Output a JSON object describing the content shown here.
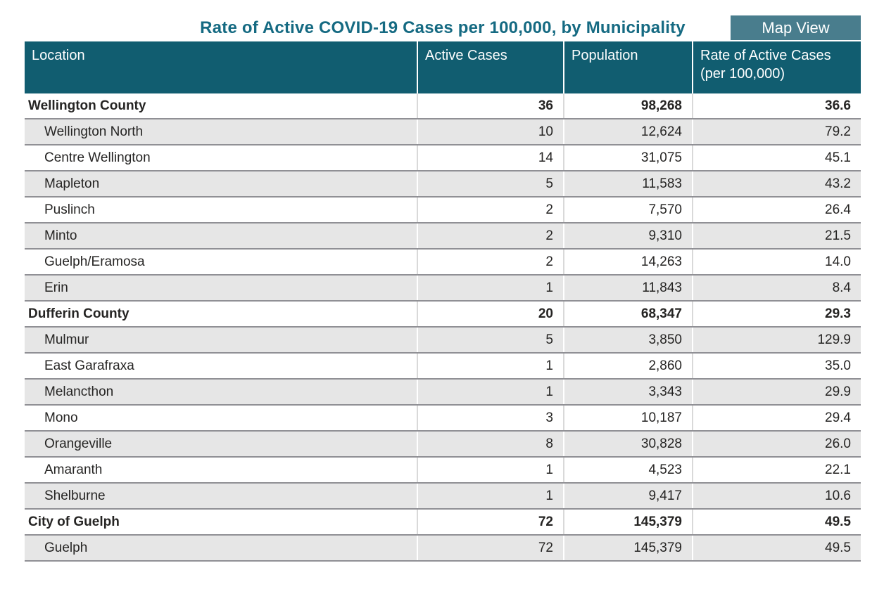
{
  "toolbar": {
    "map_view_label": "Map View"
  },
  "colors": {
    "title_text": "#156A82",
    "header_bg": "#115D70",
    "button_bg": "#497D8D",
    "row_alt_bg": "#E6E6E6",
    "row_separator": "#909095",
    "body_text": "#252423"
  },
  "chart_data": {
    "type": "table",
    "title": "Rate of Active COVID-19 Cases per 100,000, by Municipality",
    "columns": [
      "Location",
      "Active Cases",
      "Population",
      "Rate of Active Cases (per 100,000)"
    ],
    "rows": [
      {
        "location": "Wellington County",
        "active_cases": "36",
        "population": "98,268",
        "rate": "36.6",
        "level": "county"
      },
      {
        "location": "Wellington North",
        "active_cases": "10",
        "population": "12,624",
        "rate": "79.2",
        "level": "municipality"
      },
      {
        "location": "Centre Wellington",
        "active_cases": "14",
        "population": "31,075",
        "rate": "45.1",
        "level": "municipality"
      },
      {
        "location": "Mapleton",
        "active_cases": "5",
        "population": "11,583",
        "rate": "43.2",
        "level": "municipality"
      },
      {
        "location": "Puslinch",
        "active_cases": "2",
        "population": "7,570",
        "rate": "26.4",
        "level": "municipality"
      },
      {
        "location": "Minto",
        "active_cases": "2",
        "population": "9,310",
        "rate": "21.5",
        "level": "municipality"
      },
      {
        "location": "Guelph/Eramosa",
        "active_cases": "2",
        "population": "14,263",
        "rate": "14.0",
        "level": "municipality"
      },
      {
        "location": "Erin",
        "active_cases": "1",
        "population": "11,843",
        "rate": "8.4",
        "level": "municipality"
      },
      {
        "location": "Dufferin County",
        "active_cases": "20",
        "population": "68,347",
        "rate": "29.3",
        "level": "county"
      },
      {
        "location": "Mulmur",
        "active_cases": "5",
        "population": "3,850",
        "rate": "129.9",
        "level": "municipality"
      },
      {
        "location": "East Garafraxa",
        "active_cases": "1",
        "population": "2,860",
        "rate": "35.0",
        "level": "municipality"
      },
      {
        "location": "Melancthon",
        "active_cases": "1",
        "population": "3,343",
        "rate": "29.9",
        "level": "municipality"
      },
      {
        "location": "Mono",
        "active_cases": "3",
        "population": "10,187",
        "rate": "29.4",
        "level": "municipality"
      },
      {
        "location": "Orangeville",
        "active_cases": "8",
        "population": "30,828",
        "rate": "26.0",
        "level": "municipality"
      },
      {
        "location": "Amaranth",
        "active_cases": "1",
        "population": "4,523",
        "rate": "22.1",
        "level": "municipality"
      },
      {
        "location": "Shelburne",
        "active_cases": "1",
        "population": "9,417",
        "rate": "10.6",
        "level": "municipality"
      },
      {
        "location": "City of Guelph",
        "active_cases": "72",
        "population": "145,379",
        "rate": "49.5",
        "level": "county"
      },
      {
        "location": "Guelph",
        "active_cases": "72",
        "population": "145,379",
        "rate": "49.5",
        "level": "municipality"
      }
    ]
  }
}
